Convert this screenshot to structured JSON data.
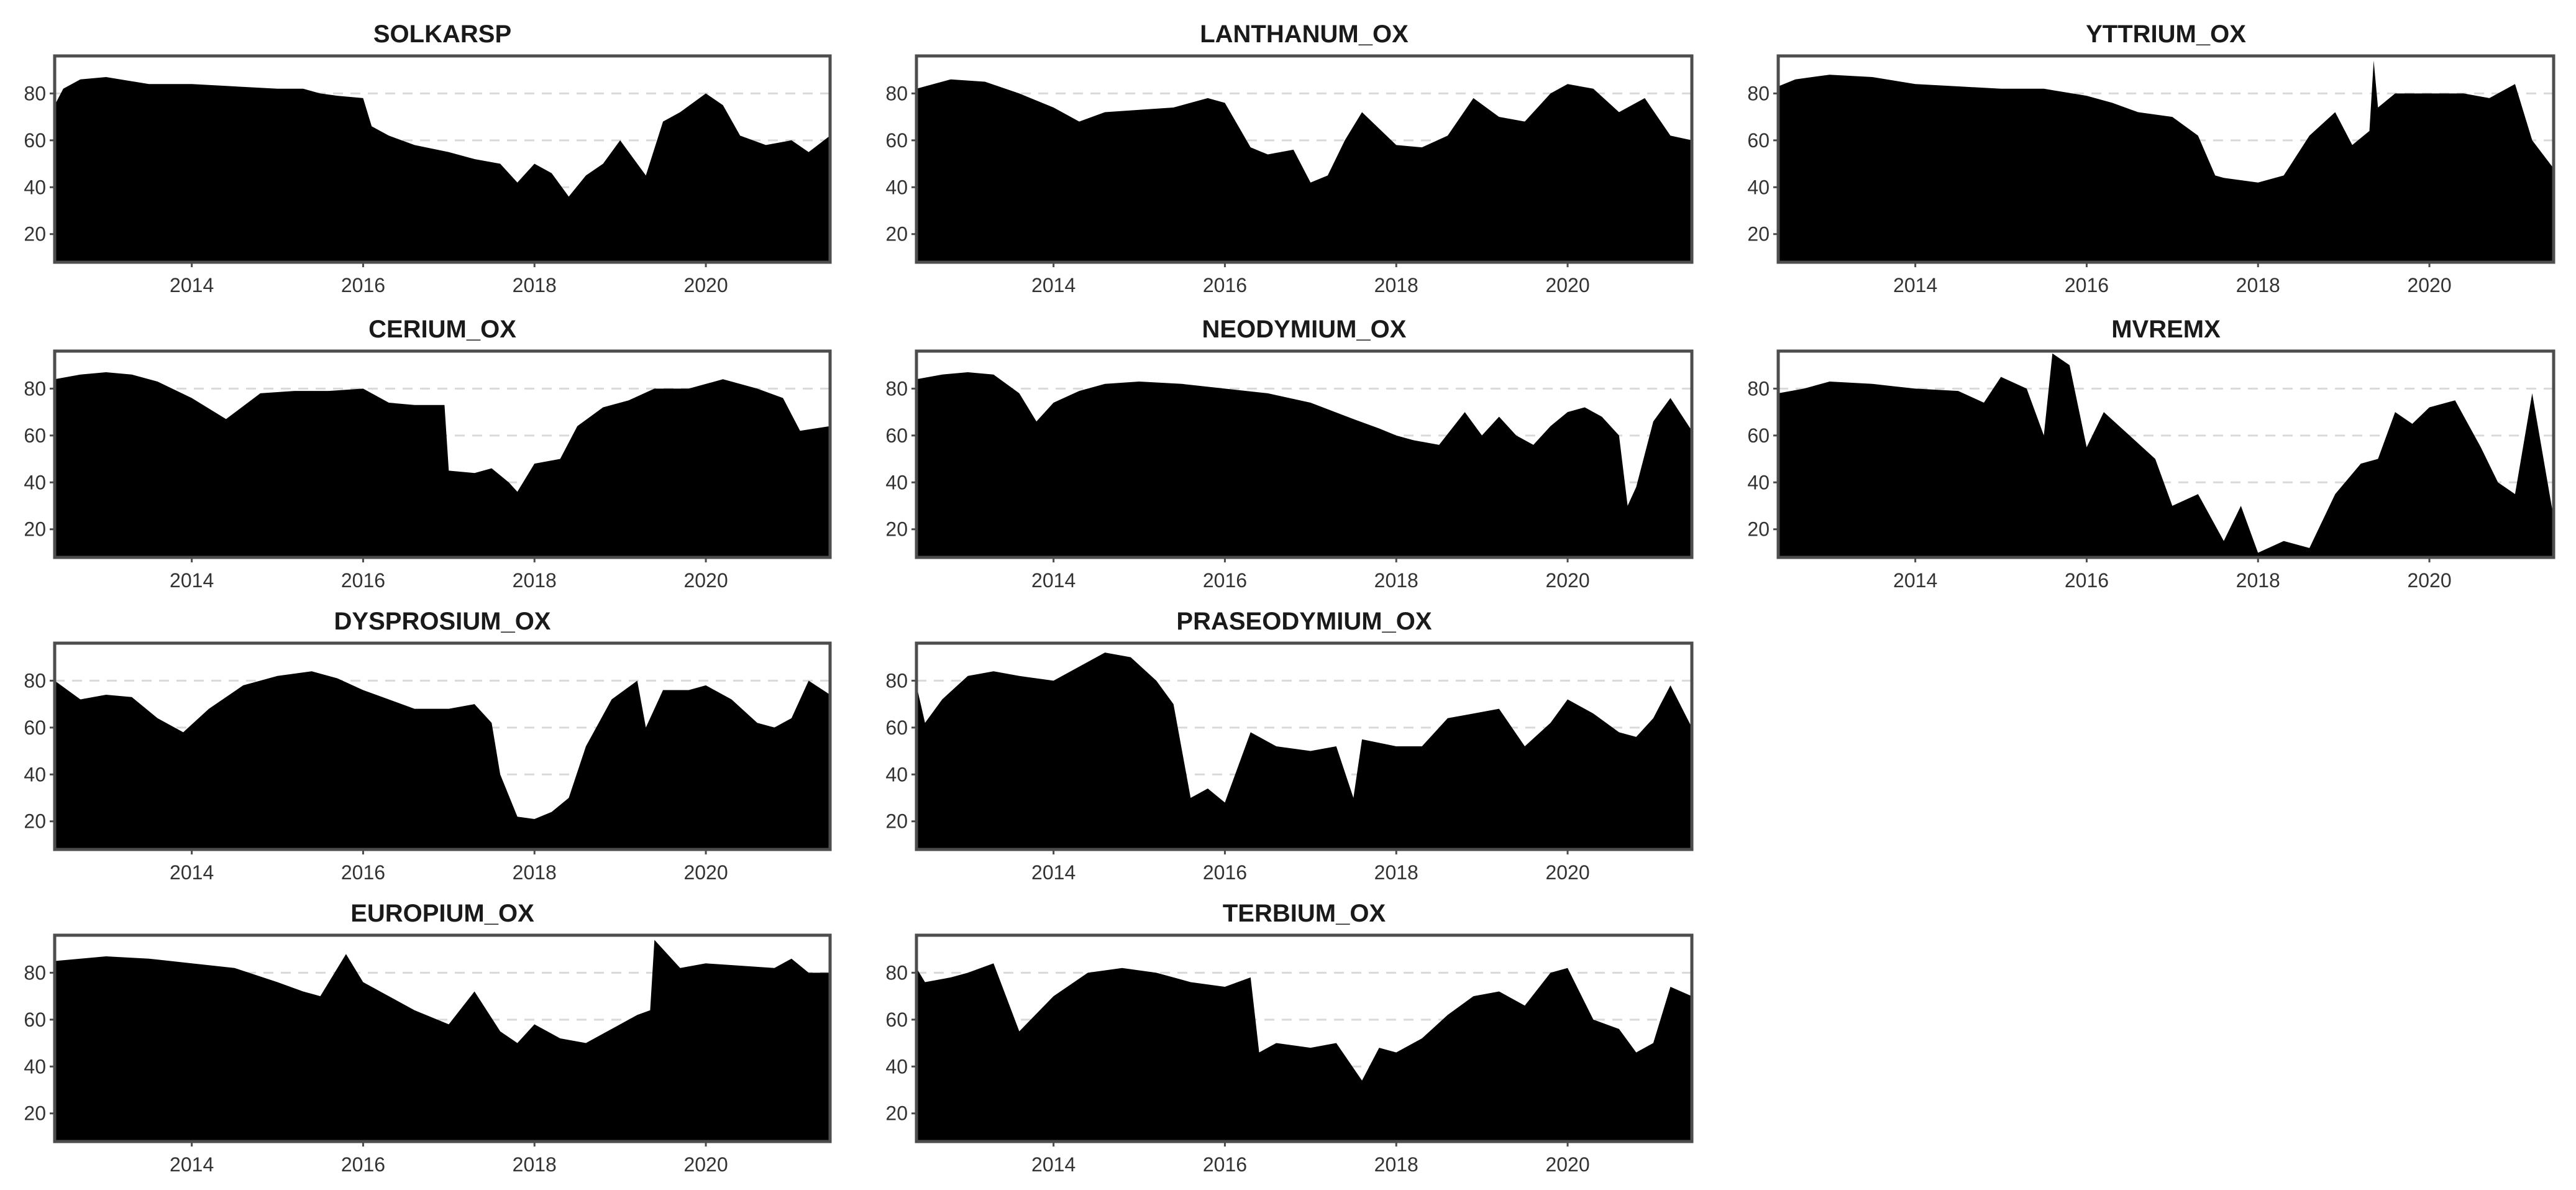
{
  "colors": {
    "area_fill": "#000000",
    "grid": "#d9d9d9",
    "frame": "#4d4d4d",
    "title_text": "#1a1a1a",
    "tick_text": "#333333"
  },
  "chart_data": [
    {
      "type": "area",
      "title": "SOLKARSP",
      "x_range": [
        2012.4,
        2021.45
      ],
      "ylim": [
        8,
        96
      ],
      "x_ticks": [
        2014,
        2016,
        2018,
        2020
      ],
      "x_tick_labels": [
        "2014",
        "2016",
        "2018",
        "2020"
      ],
      "y_ticks": [
        20,
        40,
        60,
        80
      ],
      "y_tick_labels": [
        "20",
        "40",
        "60",
        "80"
      ],
      "grid_y": [
        40,
        60,
        80
      ],
      "x": [
        2012.4,
        2012.5,
        2012.7,
        2013.0,
        2013.5,
        2014.0,
        2014.5,
        2015.0,
        2015.3,
        2015.5,
        2015.7,
        2016.0,
        2016.1,
        2016.3,
        2016.6,
        2017.0,
        2017.3,
        2017.6,
        2017.8,
        2018.0,
        2018.2,
        2018.4,
        2018.6,
        2018.8,
        2019.0,
        2019.3,
        2019.5,
        2019.7,
        2020.0,
        2020.2,
        2020.4,
        2020.7,
        2021.0,
        2021.2,
        2021.45
      ],
      "y": [
        75,
        82,
        86,
        87,
        84,
        84,
        83,
        82,
        82,
        80,
        79,
        78,
        66,
        62,
        58,
        55,
        52,
        50,
        42,
        50,
        46,
        36,
        45,
        50,
        60,
        45,
        68,
        72,
        80,
        75,
        62,
        58,
        60,
        55,
        62
      ]
    },
    {
      "type": "area",
      "title": "LANTHANUM_OX",
      "x_range": [
        2012.4,
        2021.45
      ],
      "ylim": [
        8,
        96
      ],
      "x_ticks": [
        2014,
        2016,
        2018,
        2020
      ],
      "x_tick_labels": [
        "2014",
        "2016",
        "2018",
        "2020"
      ],
      "y_ticks": [
        20,
        40,
        60,
        80
      ],
      "y_tick_labels": [
        "20",
        "40",
        "60",
        "80"
      ],
      "grid_y": [
        40,
        60,
        80
      ],
      "x": [
        2012.4,
        2012.8,
        2013.2,
        2013.6,
        2014.0,
        2014.3,
        2014.6,
        2015.0,
        2015.4,
        2015.8,
        2016.0,
        2016.3,
        2016.5,
        2016.8,
        2017.0,
        2017.2,
        2017.4,
        2017.6,
        2018.0,
        2018.3,
        2018.6,
        2018.9,
        2019.2,
        2019.5,
        2019.8,
        2020.0,
        2020.3,
        2020.6,
        2020.9,
        2021.2,
        2021.45
      ],
      "y": [
        82,
        86,
        85,
        80,
        74,
        68,
        72,
        73,
        74,
        78,
        76,
        57,
        54,
        56,
        42,
        45,
        60,
        72,
        58,
        57,
        62,
        78,
        70,
        68,
        80,
        84,
        82,
        72,
        78,
        62,
        60
      ]
    },
    {
      "type": "area",
      "title": "YTTRIUM_OX",
      "x_range": [
        2012.4,
        2021.45
      ],
      "ylim": [
        8,
        96
      ],
      "x_ticks": [
        2014,
        2016,
        2018,
        2020
      ],
      "x_tick_labels": [
        "2014",
        "2016",
        "2018",
        "2020"
      ],
      "y_ticks": [
        20,
        40,
        60,
        80
      ],
      "y_tick_labels": [
        "20",
        "40",
        "60",
        "80"
      ],
      "grid_y": [
        40,
        60,
        80
      ],
      "x": [
        2012.4,
        2012.6,
        2013.0,
        2013.5,
        2014.0,
        2014.5,
        2015.0,
        2015.5,
        2016.0,
        2016.3,
        2016.6,
        2017.0,
        2017.3,
        2017.5,
        2017.6,
        2018.0,
        2018.3,
        2018.6,
        2018.9,
        2019.1,
        2019.3,
        2019.35,
        2019.4,
        2019.6,
        2020.0,
        2020.4,
        2020.7,
        2021.0,
        2021.2,
        2021.45
      ],
      "y": [
        83,
        86,
        88,
        87,
        84,
        83,
        82,
        82,
        79,
        76,
        72,
        70,
        62,
        45,
        44,
        42,
        45,
        62,
        72,
        58,
        64,
        94,
        74,
        80,
        80,
        80,
        78,
        84,
        60,
        48
      ]
    },
    {
      "type": "area",
      "title": "CERIUM_OX",
      "x_range": [
        2012.4,
        2021.45
      ],
      "ylim": [
        8,
        96
      ],
      "x_ticks": [
        2014,
        2016,
        2018,
        2020
      ],
      "x_tick_labels": [
        "2014",
        "2016",
        "2018",
        "2020"
      ],
      "y_ticks": [
        20,
        40,
        60,
        80
      ],
      "y_tick_labels": [
        "20",
        "40",
        "60",
        "80"
      ],
      "grid_y": [
        40,
        60,
        80
      ],
      "x": [
        2012.4,
        2012.7,
        2013.0,
        2013.3,
        2013.6,
        2014.0,
        2014.4,
        2014.8,
        2015.2,
        2015.6,
        2016.0,
        2016.3,
        2016.6,
        2016.95,
        2017.0,
        2017.3,
        2017.5,
        2017.7,
        2017.8,
        2018.0,
        2018.3,
        2018.5,
        2018.8,
        2019.1,
        2019.4,
        2019.8,
        2020.2,
        2020.6,
        2020.9,
        2021.1,
        2021.45
      ],
      "y": [
        84,
        86,
        87,
        86,
        83,
        76,
        67,
        78,
        79,
        79,
        80,
        74,
        73,
        73,
        45,
        44,
        46,
        40,
        36,
        48,
        50,
        64,
        72,
        75,
        80,
        80,
        84,
        80,
        76,
        62,
        64
      ]
    },
    {
      "type": "area",
      "title": "NEODYMIUM_OX",
      "x_range": [
        2012.4,
        2021.45
      ],
      "ylim": [
        8,
        96
      ],
      "x_ticks": [
        2014,
        2016,
        2018,
        2020
      ],
      "x_tick_labels": [
        "2014",
        "2016",
        "2018",
        "2020"
      ],
      "y_ticks": [
        20,
        40,
        60,
        80
      ],
      "y_tick_labels": [
        "20",
        "40",
        "60",
        "80"
      ],
      "grid_y": [
        40,
        60,
        80
      ],
      "x": [
        2012.4,
        2012.7,
        2013.0,
        2013.3,
        2013.6,
        2013.8,
        2014.0,
        2014.3,
        2014.6,
        2015.0,
        2015.5,
        2016.0,
        2016.5,
        2017.0,
        2017.5,
        2017.8,
        2018.0,
        2018.2,
        2018.5,
        2018.8,
        2019.0,
        2019.2,
        2019.4,
        2019.6,
        2019.8,
        2020.0,
        2020.2,
        2020.4,
        2020.6,
        2020.7,
        2020.8,
        2021.0,
        2021.2,
        2021.45
      ],
      "y": [
        84,
        86,
        87,
        86,
        78,
        66,
        74,
        79,
        82,
        83,
        82,
        80,
        78,
        74,
        67,
        63,
        60,
        58,
        56,
        70,
        60,
        68,
        60,
        56,
        64,
        70,
        72,
        68,
        60,
        30,
        38,
        66,
        76,
        62
      ]
    },
    {
      "type": "area",
      "title": "MVREMX",
      "x_range": [
        2012.4,
        2021.45
      ],
      "ylim": [
        8,
        96
      ],
      "x_ticks": [
        2014,
        2016,
        2018,
        2020
      ],
      "x_tick_labels": [
        "2014",
        "2016",
        "2018",
        "2020"
      ],
      "y_ticks": [
        20,
        40,
        60,
        80
      ],
      "y_tick_labels": [
        "20",
        "40",
        "60",
        "80"
      ],
      "grid_y": [
        40,
        60,
        80
      ],
      "x": [
        2012.4,
        2012.7,
        2013.0,
        2013.5,
        2014.0,
        2014.5,
        2014.8,
        2015.0,
        2015.3,
        2015.5,
        2015.6,
        2015.8,
        2016.0,
        2016.2,
        2016.5,
        2016.8,
        2017.0,
        2017.3,
        2017.6,
        2017.8,
        2018.0,
        2018.3,
        2018.6,
        2018.9,
        2019.2,
        2019.4,
        2019.6,
        2019.8,
        2020.0,
        2020.3,
        2020.6,
        2020.8,
        2021.0,
        2021.2,
        2021.45
      ],
      "y": [
        78,
        80,
        83,
        82,
        80,
        79,
        74,
        85,
        80,
        60,
        95,
        90,
        55,
        70,
        60,
        50,
        30,
        35,
        15,
        30,
        10,
        15,
        12,
        35,
        48,
        50,
        70,
        65,
        72,
        75,
        55,
        40,
        35,
        78,
        25
      ]
    },
    {
      "type": "area",
      "title": "DYSPROSIUM_OX",
      "x_range": [
        2012.4,
        2021.45
      ],
      "ylim": [
        8,
        96
      ],
      "x_ticks": [
        2014,
        2016,
        2018,
        2020
      ],
      "x_tick_labels": [
        "2014",
        "2016",
        "2018",
        "2020"
      ],
      "y_ticks": [
        20,
        40,
        60,
        80
      ],
      "y_tick_labels": [
        "20",
        "40",
        "60",
        "80"
      ],
      "grid_y": [
        40,
        60,
        80
      ],
      "x": [
        2012.4,
        2012.7,
        2013.0,
        2013.3,
        2013.6,
        2013.9,
        2014.2,
        2014.6,
        2015.0,
        2015.4,
        2015.7,
        2016.0,
        2016.3,
        2016.6,
        2017.0,
        2017.3,
        2017.5,
        2017.6,
        2017.8,
        2018.0,
        2018.2,
        2018.4,
        2018.6,
        2018.9,
        2019.2,
        2019.3,
        2019.5,
        2019.8,
        2020.0,
        2020.3,
        2020.6,
        2020.8,
        2021.0,
        2021.2,
        2021.45
      ],
      "y": [
        80,
        72,
        74,
        73,
        64,
        58,
        68,
        78,
        82,
        84,
        81,
        76,
        72,
        68,
        68,
        70,
        62,
        40,
        22,
        21,
        24,
        30,
        52,
        72,
        80,
        60,
        76,
        76,
        78,
        72,
        62,
        60,
        64,
        80,
        74
      ]
    },
    {
      "type": "area",
      "title": "PRASEODYMIUM_OX",
      "x_range": [
        2012.4,
        2021.45
      ],
      "ylim": [
        8,
        96
      ],
      "x_ticks": [
        2014,
        2016,
        2018,
        2020
      ],
      "x_tick_labels": [
        "2014",
        "2016",
        "2018",
        "2020"
      ],
      "y_ticks": [
        20,
        40,
        60,
        80
      ],
      "y_tick_labels": [
        "20",
        "40",
        "60",
        "80"
      ],
      "grid_y": [
        40,
        60,
        80
      ],
      "x": [
        2012.4,
        2012.5,
        2012.7,
        2013.0,
        2013.3,
        2013.6,
        2014.0,
        2014.3,
        2014.6,
        2014.9,
        2015.2,
        2015.4,
        2015.6,
        2015.8,
        2016.0,
        2016.3,
        2016.6,
        2017.0,
        2017.3,
        2017.5,
        2017.6,
        2018.0,
        2018.3,
        2018.6,
        2018.9,
        2019.2,
        2019.5,
        2019.8,
        2020.0,
        2020.3,
        2020.6,
        2020.8,
        2021.0,
        2021.2,
        2021.45
      ],
      "y": [
        78,
        62,
        72,
        82,
        84,
        82,
        80,
        86,
        92,
        90,
        80,
        70,
        30,
        34,
        28,
        58,
        52,
        50,
        52,
        30,
        55,
        52,
        52,
        64,
        66,
        68,
        52,
        62,
        72,
        66,
        58,
        56,
        64,
        78,
        60
      ]
    },
    {
      "type": "area",
      "title": "EUROPIUM_OX",
      "x_range": [
        2012.4,
        2021.45
      ],
      "ylim": [
        8,
        96
      ],
      "x_ticks": [
        2014,
        2016,
        2018,
        2020
      ],
      "x_tick_labels": [
        "2014",
        "2016",
        "2018",
        "2020"
      ],
      "y_ticks": [
        20,
        40,
        60,
        80
      ],
      "y_tick_labels": [
        "20",
        "40",
        "60",
        "80"
      ],
      "grid_y": [
        40,
        60,
        80
      ],
      "x": [
        2012.4,
        2012.7,
        2013.0,
        2013.5,
        2014.0,
        2014.5,
        2015.0,
        2015.3,
        2015.5,
        2015.8,
        2016.0,
        2016.3,
        2016.6,
        2017.0,
        2017.3,
        2017.6,
        2017.8,
        2018.0,
        2018.3,
        2018.6,
        2018.9,
        2019.2,
        2019.35,
        2019.4,
        2019.7,
        2020.0,
        2020.4,
        2020.8,
        2021.0,
        2021.2,
        2021.45
      ],
      "y": [
        85,
        86,
        87,
        86,
        84,
        82,
        76,
        72,
        70,
        88,
        76,
        70,
        64,
        58,
        72,
        55,
        50,
        58,
        52,
        50,
        56,
        62,
        64,
        94,
        82,
        84,
        83,
        82,
        86,
        80,
        80
      ]
    },
    {
      "type": "area",
      "title": "TERBIUM_OX",
      "x_range": [
        2012.4,
        2021.45
      ],
      "ylim": [
        8,
        96
      ],
      "x_ticks": [
        2014,
        2016,
        2018,
        2020
      ],
      "x_tick_labels": [
        "2014",
        "2016",
        "2018",
        "2020"
      ],
      "y_ticks": [
        20,
        40,
        60,
        80
      ],
      "y_tick_labels": [
        "20",
        "40",
        "60",
        "80"
      ],
      "grid_y": [
        40,
        60,
        80
      ],
      "x": [
        2012.4,
        2012.5,
        2012.8,
        2013.0,
        2013.3,
        2013.6,
        2014.0,
        2014.4,
        2014.8,
        2015.2,
        2015.6,
        2016.0,
        2016.3,
        2016.4,
        2016.6,
        2017.0,
        2017.3,
        2017.6,
        2017.8,
        2018.0,
        2018.3,
        2018.6,
        2018.9,
        2019.2,
        2019.5,
        2019.8,
        2020.0,
        2020.3,
        2020.6,
        2020.8,
        2021.0,
        2021.2,
        2021.45
      ],
      "y": [
        82,
        76,
        78,
        80,
        84,
        55,
        70,
        80,
        82,
        80,
        76,
        74,
        78,
        46,
        50,
        48,
        50,
        34,
        48,
        46,
        52,
        62,
        70,
        72,
        66,
        80,
        82,
        60,
        56,
        46,
        50,
        74,
        70
      ]
    }
  ]
}
